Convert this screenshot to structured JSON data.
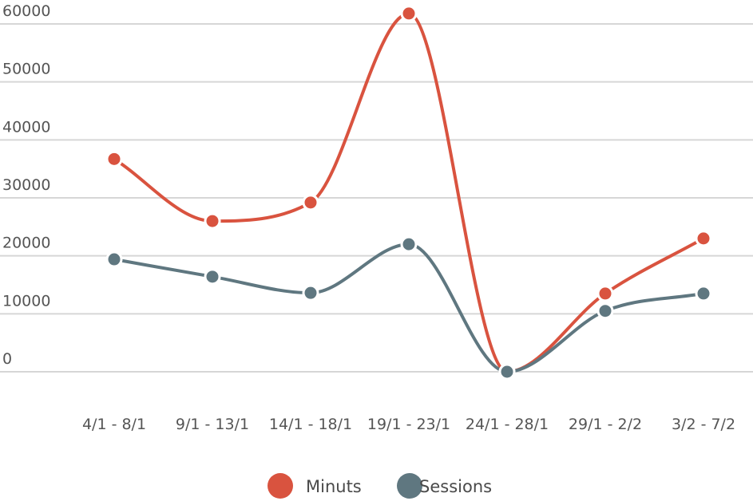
{
  "chart_data": {
    "type": "line",
    "categories": [
      "4/1 - 8/1",
      "9/1 - 13/1",
      "14/1 - 18/1",
      "19/1 - 23/1",
      "24/1 - 28/1",
      "29/1 - 2/2",
      "3/2 - 7/2"
    ],
    "series": [
      {
        "name": "Minuts",
        "color": "#d9533f",
        "values": [
          36700,
          26000,
          29200,
          61800,
          0,
          13500,
          23000
        ]
      },
      {
        "name": "Sessions",
        "color": "#5f7780",
        "values": [
          19400,
          16400,
          13600,
          22000,
          0,
          10500,
          13500
        ]
      }
    ],
    "y_ticks": [
      "0",
      "10000",
      "20000",
      "30000",
      "40000",
      "50000",
      "60000"
    ],
    "ylim": [
      0,
      60000
    ],
    "grid": true,
    "legend_position": "bottom-center",
    "title": "",
    "xlabel": "",
    "ylabel": ""
  }
}
